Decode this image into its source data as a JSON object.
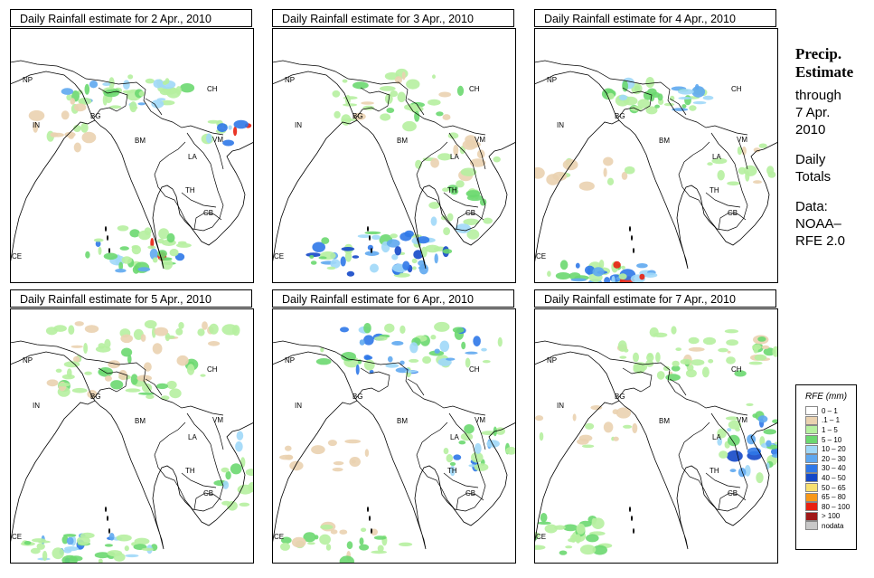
{
  "panels": [
    {
      "title": "Daily Rainfall estimate for  2 Apr., 2010"
    },
    {
      "title": "Daily Rainfall estimate for  3 Apr., 2010"
    },
    {
      "title": "Daily Rainfall estimate for  4 Apr., 2010"
    },
    {
      "title": "Daily Rainfall estimate for  5 Apr., 2010"
    },
    {
      "title": "Daily Rainfall estimate for  6 Apr., 2010"
    },
    {
      "title": "Daily Rainfall estimate for  7 Apr., 2010"
    }
  ],
  "country_labels": [
    "NP",
    "CH",
    "IN",
    "BG",
    "BM",
    "VM",
    "LA",
    "TH",
    "CB",
    "CE"
  ],
  "side": {
    "heading1": "Precip.",
    "heading2": "Estimate",
    "through": "through",
    "date1": "7 Apr.",
    "date2": "2010",
    "daily": "Daily",
    "totals": "Totals",
    "data": "Data:",
    "source1": "NOAA–",
    "source2": "RFE 2.0"
  },
  "legend": {
    "title": "RFE (mm)",
    "items": [
      {
        "label": "0 – 1",
        "color": "#ffffff"
      },
      {
        "label": ".1 – 1",
        "color": "#ead2b0"
      },
      {
        "label": "1 – 5",
        "color": "#b6f0a0"
      },
      {
        "label": "5 – 10",
        "color": "#6cd870"
      },
      {
        "label": "10 – 20",
        "color": "#a0d8f8"
      },
      {
        "label": "20 – 30",
        "color": "#5fa8f0"
      },
      {
        "label": "30 – 40",
        "color": "#2f78e8"
      },
      {
        "label": "40 – 50",
        "color": "#1448c8"
      },
      {
        "label": "50 – 65",
        "color": "#f8e070"
      },
      {
        "label": "65 – 80",
        "color": "#f89818"
      },
      {
        "label": "80 – 100",
        "color": "#e82010"
      },
      {
        "label": "> 100",
        "color": "#a01818"
      },
      {
        "label": "nodata",
        "color": "#c8c8c8"
      }
    ]
  }
}
